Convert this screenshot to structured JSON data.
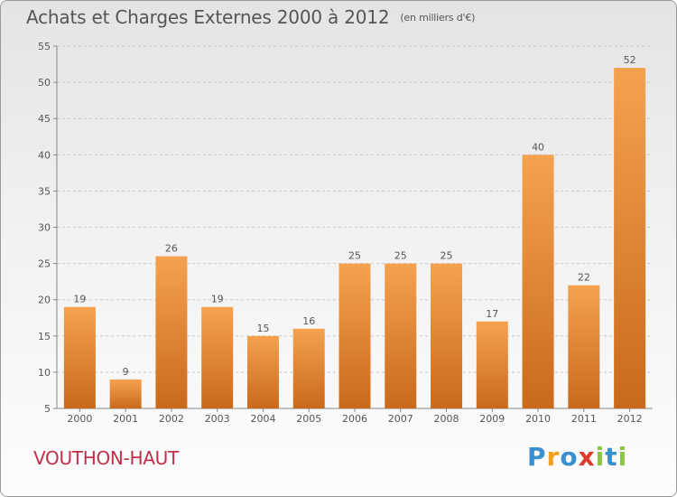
{
  "title": "Achats et Charges Externes 2000 à 2012",
  "unit": "(en milliers d'€)",
  "town": "VOUTHON-HAUT",
  "logo": {
    "letters": [
      "P",
      "r",
      "o",
      "x",
      "i",
      "t",
      "i"
    ],
    "colors": [
      "#3a8fd0",
      "#f0a020",
      "#3a8fd0",
      "#e03a2a",
      "#8cc63f",
      "#3a8fd0",
      "#8cc63f"
    ]
  },
  "colors": {
    "bar_light": "#f5a24f",
    "bar_dark": "#c96a1a",
    "grid": "#c8c8c8",
    "axis_text": "#555555"
  },
  "chart_data": {
    "type": "bar",
    "categories": [
      "2000",
      "2001",
      "2002",
      "2003",
      "2004",
      "2005",
      "2006",
      "2007",
      "2008",
      "2009",
      "2010",
      "2011",
      "2012"
    ],
    "values": [
      19,
      9,
      26,
      19,
      15,
      16,
      25,
      25,
      25,
      17,
      40,
      22,
      52
    ],
    "ylim": [
      5,
      55
    ],
    "yticks": [
      5,
      10,
      15,
      20,
      25,
      30,
      35,
      40,
      45,
      50,
      55
    ],
    "grid": true
  }
}
